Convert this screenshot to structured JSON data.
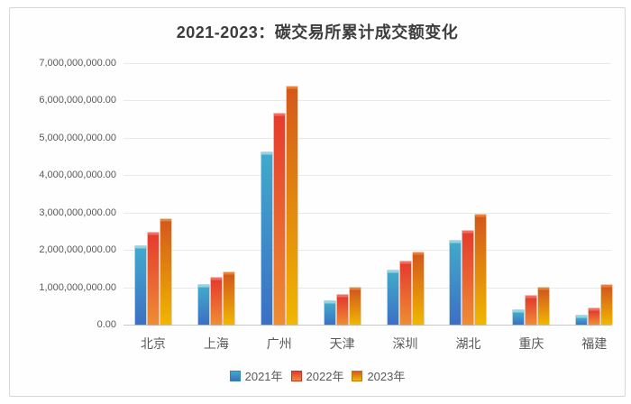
{
  "chart_title": "2021-2023：碳交易所累计成交额变化",
  "chart_data": {
    "type": "bar",
    "title": "2021-2023：碳交易所累计成交额变化",
    "categories": [
      "北京",
      "上海",
      "广州",
      "天津",
      "深圳",
      "湖北",
      "重庆",
      "福建"
    ],
    "series": [
      {
        "name": "2021年",
        "values": [
          2100000000,
          1050000000,
          4620000000,
          630000000,
          1450000000,
          2250000000,
          380000000,
          250000000
        ],
        "color_top": "#41a9cb",
        "color_bottom": "#3c6fc5",
        "color_cap": "#8fd6e2",
        "color_border": "#3786a8"
      },
      {
        "name": "2022年",
        "values": [
          2450000000,
          1250000000,
          5660000000,
          800000000,
          1700000000,
          2520000000,
          780000000,
          440000000
        ],
        "color_top": "#e53c2e",
        "color_bottom": "#ee8d33",
        "color_cap": "#ef6f60",
        "color_border": "#c23b24"
      },
      {
        "name": "2023年",
        "values": [
          2820000000,
          1390000000,
          6380000000,
          1000000000,
          1920000000,
          2950000000,
          1000000000,
          1050000000
        ],
        "color_top": "#d4591c",
        "color_bottom": "#f0b700",
        "color_cap": "#e9803a",
        "color_border": "#bc7d08"
      }
    ],
    "ylim": [
      0,
      7000000000
    ],
    "y_ticks": [
      "7,000,000,000.00",
      "6,000,000,000.00",
      "5,000,000,000.00",
      "4,000,000,000.00",
      "3,000,000,000.00",
      "2,000,000,000.00",
      "1,000,000,000.00",
      "0.00"
    ],
    "xlabel": "",
    "ylabel": "",
    "grid": true,
    "legend_position": "bottom"
  },
  "colors": {
    "frame_border": "#d8d8d8",
    "gridline": "#e9e9e9",
    "axis_line": "#c9c9c9",
    "tick_text": "#595959",
    "title_text": "#3d3d3d",
    "background": "#fefefe"
  }
}
